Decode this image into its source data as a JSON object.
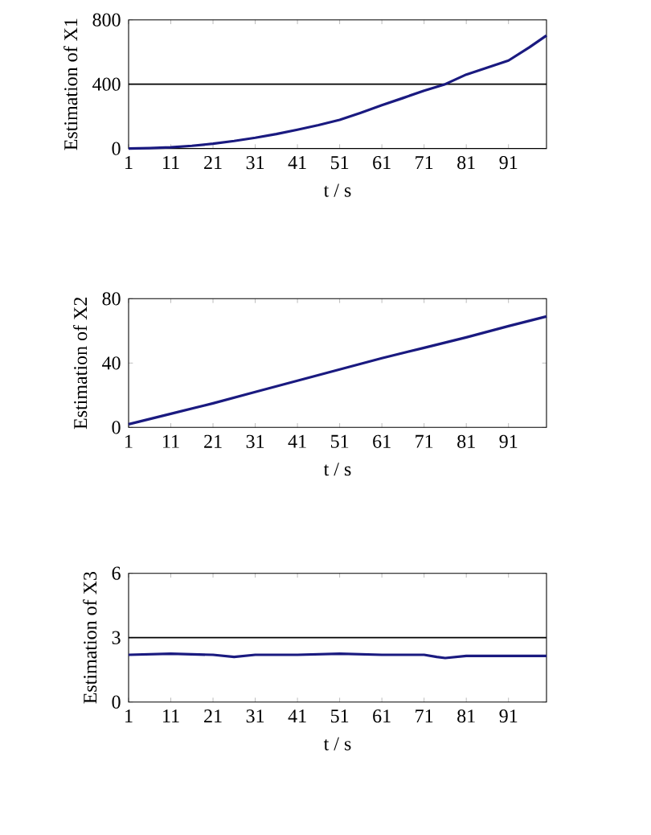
{
  "chart_data": [
    {
      "type": "line",
      "xlabel": "t / s",
      "ylabel": "Estimation of X1",
      "x": [
        1,
        6,
        11,
        16,
        21,
        26,
        31,
        36,
        41,
        46,
        51,
        56,
        61,
        66,
        71,
        76,
        81,
        86,
        91,
        96,
        100
      ],
      "series": [
        {
          "color": "#1a1a80",
          "values": [
            0,
            3,
            8,
            17,
            30,
            47,
            67,
            90,
            117,
            146,
            178,
            222,
            269,
            314,
            360,
            400,
            460,
            503,
            547,
            630,
            703
          ]
        }
      ],
      "xlim": [
        1,
        100
      ],
      "xticks": [
        1,
        11,
        21,
        31,
        41,
        51,
        61,
        71,
        81,
        91
      ],
      "ylim": [
        0,
        800
      ],
      "yticks": [
        0,
        400,
        800
      ],
      "ref_lines": [
        {
          "axis": "y",
          "value": 400,
          "color": "#000000"
        }
      ]
    },
    {
      "type": "line",
      "xlabel": "t / s",
      "ylabel": "Estimation of X2",
      "x": [
        1,
        11,
        21,
        31,
        41,
        51,
        61,
        71,
        81,
        91,
        100
      ],
      "series": [
        {
          "color": "#1a1a80",
          "values": [
            2,
            8.5,
            15,
            22,
            29,
            36,
            43,
            49.5,
            56,
            63,
            69
          ]
        }
      ],
      "xlim": [
        1,
        100
      ],
      "xticks": [
        1,
        11,
        21,
        31,
        41,
        51,
        61,
        71,
        81,
        91
      ],
      "ylim": [
        0,
        80
      ],
      "yticks": [
        0,
        40,
        80
      ]
    },
    {
      "type": "line",
      "xlabel": "t / s",
      "ylabel": "Estimation of X3",
      "x": [
        1,
        11,
        21,
        26,
        31,
        41,
        51,
        61,
        71,
        74,
        76,
        81,
        91,
        100
      ],
      "series": [
        {
          "color": "#1a1a80",
          "values": [
            2.2,
            2.25,
            2.2,
            2.1,
            2.2,
            2.2,
            2.25,
            2.2,
            2.2,
            2.1,
            2.05,
            2.15,
            2.15,
            2.15
          ]
        }
      ],
      "xlim": [
        1,
        100
      ],
      "xticks": [
        1,
        11,
        21,
        31,
        41,
        51,
        61,
        71,
        81,
        91
      ],
      "ylim": [
        0,
        6
      ],
      "yticks": [
        0,
        3,
        6
      ],
      "ref_lines": [
        {
          "axis": "y",
          "value": 3,
          "color": "#000000"
        }
      ]
    }
  ]
}
